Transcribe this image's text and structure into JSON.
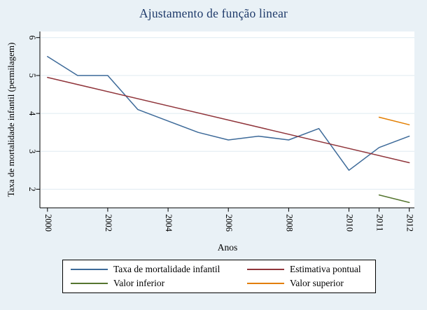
{
  "chart_data": {
    "type": "line",
    "title": "Ajustamento de função linear",
    "xlabel": "Anos",
    "ylabel": "Taxa de mortalidade infantil (permilagem)",
    "x_ticks": [
      2000,
      2002,
      2004,
      2006,
      2008,
      2010,
      2011,
      2012
    ],
    "y_ticks": [
      2,
      3,
      4,
      5,
      6
    ],
    "xlim": [
      1999.75,
      2012.17
    ],
    "ylim": [
      1.51,
      6.16
    ],
    "grid": true,
    "legend_position": "bottom",
    "colors": {
      "background": "#e9f1f6",
      "plot_background": "#ffffff",
      "gridline": "#dfeaf1",
      "axis": "#000000",
      "title": "#1e3a6a"
    },
    "series": [
      {
        "name": "Taxa de mortalidade infantil",
        "color": "#3d6a99",
        "x": [
          2000,
          2001,
          2002,
          2003,
          2004,
          2005,
          2006,
          2007,
          2008,
          2009,
          2010,
          2011,
          2012
        ],
        "values": [
          5.5,
          5.0,
          5.0,
          4.1,
          3.8,
          3.5,
          3.3,
          3.4,
          3.3,
          3.6,
          2.5,
          3.1,
          3.4
        ]
      },
      {
        "name": "Estimativa pontual",
        "color": "#90353b",
        "x": [
          2000,
          2012
        ],
        "values": [
          4.95,
          2.7
        ]
      },
      {
        "name": "Valor inferior",
        "color": "#55752f",
        "x": [
          2011,
          2012
        ],
        "values": [
          1.85,
          1.65
        ]
      },
      {
        "name": "Valor superior",
        "color": "#e37e00",
        "x": [
          2011,
          2012
        ],
        "values": [
          3.9,
          3.7
        ]
      }
    ]
  }
}
